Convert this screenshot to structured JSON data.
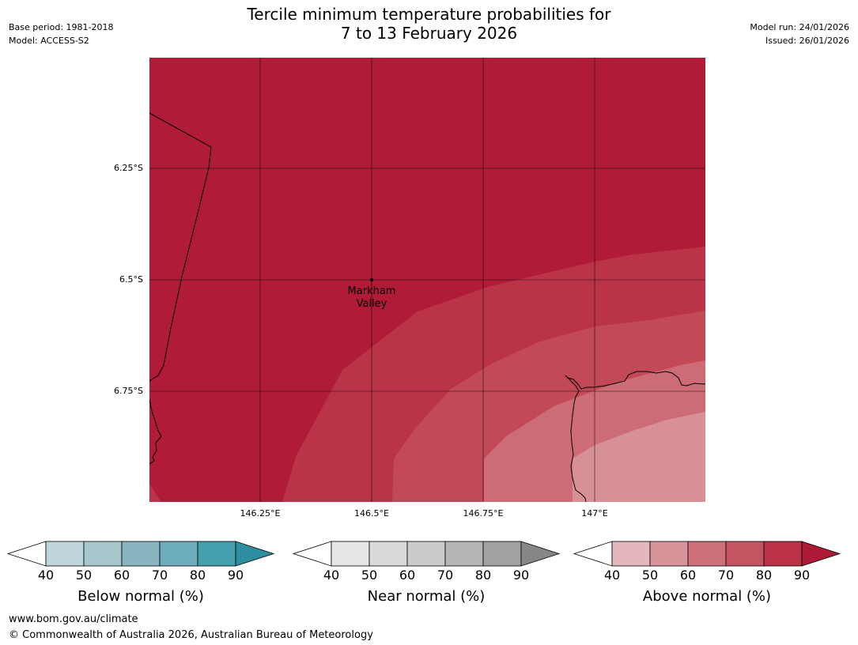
{
  "header": {
    "title_line1": "Tercile minimum temperature probabilities for",
    "title_line2": "7 to 13 February 2026",
    "base_period": "Base period: 1981-2018",
    "model": "Model: ACCESS-S2",
    "model_run": "Model run: 24/01/2026",
    "issued": "Issued: 26/01/2026"
  },
  "map": {
    "lat_labels": [
      "6.25°S",
      "6.5°S",
      "6.75°S"
    ],
    "lon_labels": [
      "146.25°E",
      "146.5°E",
      "146.75°E",
      "147°E"
    ],
    "place_line1": "Markham",
    "place_line2": "Valley",
    "fill_colors": [
      "#b01c37",
      "#ba3347",
      "#c24a56",
      "#cd6b76",
      "#d79196"
    ]
  },
  "colorbars": [
    {
      "title": "Below normal (%)",
      "ticks": [
        "40",
        "50",
        "60",
        "70",
        "80",
        "90"
      ],
      "colors": [
        "#bed5dc",
        "#a7c6cc",
        "#89b5c1",
        "#6cacbb",
        "#45a0ae",
        "#2e8e9f"
      ]
    },
    {
      "title": "Near normal (%)",
      "ticks": [
        "40",
        "50",
        "60",
        "70",
        "80",
        "90"
      ],
      "colors": [
        "#e6e6e6",
        "#d9d9d9",
        "#cbcbcb",
        "#b6b6b6",
        "#a1a1a1",
        "#868686"
      ]
    },
    {
      "title": "Above normal (%)",
      "ticks": [
        "40",
        "50",
        "60",
        "70",
        "80",
        "90"
      ],
      "colors": [
        "#e4b7bd",
        "#d8939b",
        "#cd707a",
        "#c45460",
        "#bb3146",
        "#ad1a38"
      ]
    }
  ],
  "footer": {
    "url": "www.bom.gov.au/climate",
    "copyright": "© Commonwealth of Australia 2026, Australian Bureau of Meteorology"
  }
}
